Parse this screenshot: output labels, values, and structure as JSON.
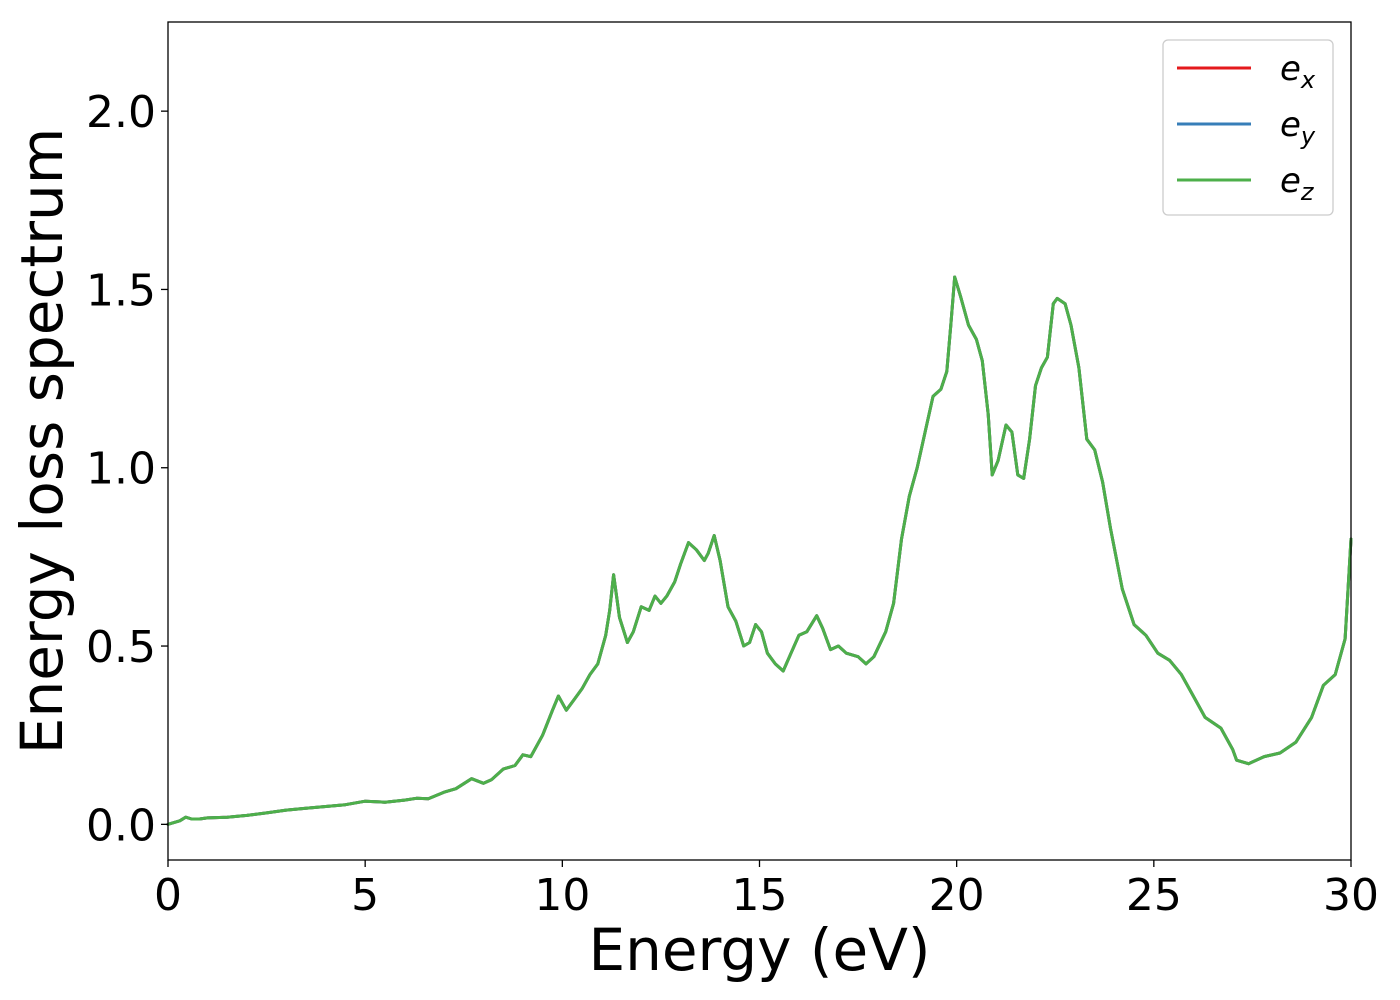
{
  "chart_data": {
    "type": "line",
    "xlabel": "Energy (eV)",
    "ylabel": "Energy loss spectrum",
    "xlim": [
      0,
      30
    ],
    "ylim": [
      -0.1,
      2.25
    ],
    "xticks": [
      0,
      5,
      10,
      15,
      20,
      25,
      30
    ],
    "xtick_labels": [
      "0",
      "5",
      "10",
      "15",
      "20",
      "25",
      "30"
    ],
    "yticks": [
      0.0,
      0.5,
      1.0,
      1.5,
      2.0
    ],
    "ytick_labels": [
      "0.0",
      "0.5",
      "1.0",
      "1.5",
      "2.0"
    ],
    "grid": false,
    "legend_position": "top-right",
    "x": [
      0.0,
      0.3,
      0.45,
      0.6,
      0.8,
      1.0,
      1.5,
      2.0,
      2.5,
      3.0,
      3.5,
      4.0,
      4.5,
      5.0,
      5.5,
      6.0,
      6.3,
      6.6,
      7.0,
      7.3,
      7.7,
      8.0,
      8.2,
      8.5,
      8.8,
      9.0,
      9.2,
      9.5,
      9.75,
      9.9,
      10.1,
      10.3,
      10.5,
      10.7,
      10.9,
      11.1,
      11.2,
      11.3,
      11.45,
      11.65,
      11.8,
      12.0,
      12.2,
      12.35,
      12.5,
      12.65,
      12.85,
      13.0,
      13.2,
      13.4,
      13.6,
      13.7,
      13.85,
      14.0,
      14.2,
      14.4,
      14.6,
      14.75,
      14.9,
      15.05,
      15.2,
      15.4,
      15.6,
      15.8,
      16.0,
      16.2,
      16.45,
      16.6,
      16.8,
      17.0,
      17.2,
      17.5,
      17.7,
      17.9,
      18.2,
      18.4,
      18.6,
      18.8,
      19.0,
      19.2,
      19.4,
      19.6,
      19.75,
      19.85,
      19.95,
      20.1,
      20.3,
      20.5,
      20.65,
      20.8,
      20.9,
      21.05,
      21.25,
      21.4,
      21.55,
      21.7,
      21.85,
      22.0,
      22.15,
      22.3,
      22.45,
      22.55,
      22.75,
      22.9,
      23.1,
      23.3,
      23.5,
      23.7,
      23.9,
      24.2,
      24.5,
      24.8,
      25.1,
      25.4,
      25.7,
      26.0,
      26.3,
      26.7,
      27.0,
      27.1,
      27.4,
      27.8,
      28.2,
      28.6,
      29.0,
      29.3,
      29.6,
      29.85,
      30.0
    ],
    "series": [
      {
        "name": "e_x",
        "color": "#e41a1c",
        "values": [
          0.0,
          0.01,
          0.02,
          0.015,
          0.015,
          0.018,
          0.02,
          0.025,
          0.032,
          0.04,
          0.045,
          0.05,
          0.055,
          0.065,
          0.062,
          0.068,
          0.073,
          0.072,
          0.09,
          0.1,
          0.128,
          0.115,
          0.125,
          0.155,
          0.165,
          0.195,
          0.19,
          0.25,
          0.32,
          0.36,
          0.32,
          0.35,
          0.38,
          0.42,
          0.45,
          0.53,
          0.6,
          0.7,
          0.58,
          0.51,
          0.54,
          0.61,
          0.6,
          0.64,
          0.62,
          0.64,
          0.68,
          0.73,
          0.79,
          0.77,
          0.74,
          0.76,
          0.81,
          0.74,
          0.61,
          0.57,
          0.5,
          0.51,
          0.56,
          0.54,
          0.48,
          0.45,
          0.43,
          0.48,
          0.53,
          0.54,
          0.585,
          0.55,
          0.49,
          0.5,
          0.48,
          0.47,
          0.45,
          0.47,
          0.54,
          0.62,
          0.8,
          0.92,
          1.0,
          1.1,
          1.2,
          1.22,
          1.27,
          1.4,
          1.535,
          1.48,
          1.4,
          1.36,
          1.3,
          1.15,
          0.98,
          1.02,
          1.12,
          1.1,
          0.98,
          0.97,
          1.08,
          1.23,
          1.28,
          1.31,
          1.46,
          1.475,
          1.46,
          1.4,
          1.28,
          1.08,
          1.05,
          0.96,
          0.83,
          0.66,
          0.56,
          0.53,
          0.48,
          0.46,
          0.42,
          0.36,
          0.3,
          0.27,
          0.21,
          0.18,
          0.17,
          0.19,
          0.2,
          0.23,
          0.3,
          0.39,
          0.42,
          0.52,
          0.8
        ]
      },
      {
        "name": "e_y",
        "color": "#377eb8",
        "values": [
          0.0,
          0.01,
          0.02,
          0.015,
          0.015,
          0.018,
          0.02,
          0.025,
          0.032,
          0.04,
          0.045,
          0.05,
          0.055,
          0.065,
          0.062,
          0.068,
          0.073,
          0.072,
          0.09,
          0.1,
          0.128,
          0.115,
          0.125,
          0.155,
          0.165,
          0.195,
          0.19,
          0.25,
          0.32,
          0.36,
          0.32,
          0.35,
          0.38,
          0.42,
          0.45,
          0.53,
          0.6,
          0.7,
          0.58,
          0.51,
          0.54,
          0.61,
          0.6,
          0.64,
          0.62,
          0.64,
          0.68,
          0.73,
          0.79,
          0.77,
          0.74,
          0.76,
          0.81,
          0.74,
          0.61,
          0.57,
          0.5,
          0.51,
          0.56,
          0.54,
          0.48,
          0.45,
          0.43,
          0.48,
          0.53,
          0.54,
          0.585,
          0.55,
          0.49,
          0.5,
          0.48,
          0.47,
          0.45,
          0.47,
          0.54,
          0.62,
          0.8,
          0.92,
          1.0,
          1.1,
          1.2,
          1.22,
          1.27,
          1.4,
          1.535,
          1.48,
          1.4,
          1.36,
          1.3,
          1.15,
          0.98,
          1.02,
          1.12,
          1.1,
          0.98,
          0.97,
          1.08,
          1.23,
          1.28,
          1.31,
          1.46,
          1.475,
          1.46,
          1.4,
          1.28,
          1.08,
          1.05,
          0.96,
          0.83,
          0.66,
          0.56,
          0.53,
          0.48,
          0.46,
          0.42,
          0.36,
          0.3,
          0.27,
          0.21,
          0.18,
          0.17,
          0.19,
          0.2,
          0.23,
          0.3,
          0.39,
          0.42,
          0.52,
          0.8
        ]
      },
      {
        "name": "e_z",
        "color": "#4daf4a",
        "values": [
          0.0,
          0.01,
          0.02,
          0.015,
          0.015,
          0.018,
          0.02,
          0.025,
          0.032,
          0.04,
          0.045,
          0.05,
          0.055,
          0.065,
          0.062,
          0.068,
          0.073,
          0.072,
          0.09,
          0.1,
          0.128,
          0.115,
          0.125,
          0.155,
          0.165,
          0.195,
          0.19,
          0.25,
          0.32,
          0.36,
          0.32,
          0.35,
          0.38,
          0.42,
          0.45,
          0.53,
          0.6,
          0.7,
          0.58,
          0.51,
          0.54,
          0.61,
          0.6,
          0.64,
          0.62,
          0.64,
          0.68,
          0.73,
          0.79,
          0.77,
          0.74,
          0.76,
          0.81,
          0.74,
          0.61,
          0.57,
          0.5,
          0.51,
          0.56,
          0.54,
          0.48,
          0.45,
          0.43,
          0.48,
          0.53,
          0.54,
          0.585,
          0.55,
          0.49,
          0.5,
          0.48,
          0.47,
          0.45,
          0.47,
          0.54,
          0.62,
          0.8,
          0.92,
          1.0,
          1.1,
          1.2,
          1.22,
          1.27,
          1.4,
          1.535,
          1.48,
          1.4,
          1.36,
          1.3,
          1.15,
          0.98,
          1.02,
          1.12,
          1.1,
          0.98,
          0.97,
          1.08,
          1.23,
          1.28,
          1.31,
          1.46,
          1.475,
          1.46,
          1.4,
          1.28,
          1.08,
          1.05,
          0.96,
          0.83,
          0.66,
          0.56,
          0.53,
          0.48,
          0.46,
          0.42,
          0.36,
          0.3,
          0.27,
          0.21,
          0.18,
          0.17,
          0.19,
          0.2,
          0.23,
          0.3,
          0.39,
          0.42,
          0.52,
          0.8
        ]
      }
    ],
    "legend": [
      {
        "base": "e",
        "sub": "x",
        "color": "#e41a1c"
      },
      {
        "base": "e",
        "sub": "y",
        "color": "#377eb8"
      },
      {
        "base": "e",
        "sub": "z",
        "color": "#4daf4a"
      }
    ]
  }
}
